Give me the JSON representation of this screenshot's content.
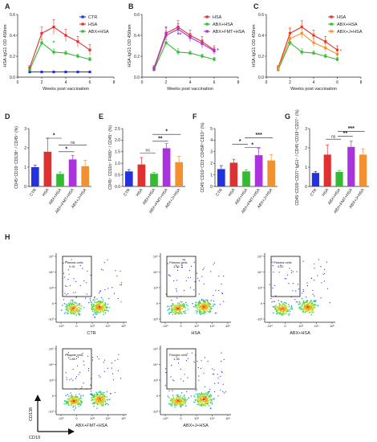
{
  "panels": {
    "A": "A",
    "B": "B",
    "C": "C",
    "D": "D",
    "E": "E",
    "F": "F",
    "G": "G",
    "H": "H"
  },
  "line_charts": [
    {
      "id": "A",
      "ylabel": "HSA-IgG1 OD 450nm",
      "xlabel": "Weeks post vaccination",
      "x": [
        1,
        2,
        3,
        4,
        5,
        6
      ],
      "xlim": [
        0,
        8
      ],
      "ylim": [
        0,
        0.6
      ],
      "xticks": [
        "0",
        "2",
        "4",
        "6",
        "8"
      ],
      "yticks": [
        "0.0",
        "0.2",
        "0.4",
        "0.6"
      ],
      "series": [
        {
          "name": "CTR",
          "color": "#2233dd",
          "values": [
            0.05,
            0.05,
            0.05,
            0.05,
            0.05,
            0.05
          ],
          "err": [
            0.005,
            0.005,
            0.005,
            0.005,
            0.005,
            0.005
          ]
        },
        {
          "name": "HSA",
          "color": "#e03030",
          "values": [
            0.09,
            0.42,
            0.48,
            0.4,
            0.34,
            0.26
          ],
          "err": [
            0.02,
            0.06,
            0.07,
            0.06,
            0.05,
            0.05
          ]
        },
        {
          "name": "ABX+HSA",
          "color": "#33bb33",
          "values": [
            0.07,
            0.33,
            0.24,
            0.23,
            0.2,
            0.17
          ],
          "err": [
            0.01,
            0.03,
            0.03,
            0.02,
            0.02,
            0.02
          ]
        }
      ],
      "stars": [
        {
          "x": 3,
          "y": 0.31,
          "text": "*",
          "color": "#33bb33"
        }
      ]
    },
    {
      "id": "B",
      "ylabel": "HSA-IgG1 OD 450nm",
      "xlabel": "Weeks post vaccination",
      "x": [
        1,
        2,
        3,
        4,
        5,
        6
      ],
      "xlim": [
        0,
        8
      ],
      "ylim": [
        0,
        0.6
      ],
      "xticks": [
        "0",
        "2",
        "4",
        "6",
        "8"
      ],
      "yticks": [
        "0.0",
        "0.2",
        "0.4",
        "0.6"
      ],
      "series": [
        {
          "name": "HSA",
          "color": "#e03030",
          "values": [
            0.09,
            0.42,
            0.48,
            0.4,
            0.34,
            0.26
          ],
          "err": [
            0.02,
            0.05,
            0.06,
            0.05,
            0.05,
            0.04
          ]
        },
        {
          "name": "ABX+HSA",
          "color": "#33bb33",
          "values": [
            0.07,
            0.33,
            0.24,
            0.23,
            0.2,
            0.17
          ],
          "err": [
            0.01,
            0.03,
            0.03,
            0.02,
            0.02,
            0.02
          ]
        },
        {
          "name": "ABX+FMT+HSA",
          "color": "#aa33dd",
          "values": [
            0.08,
            0.4,
            0.46,
            0.38,
            0.32,
            0.25
          ],
          "err": [
            0.02,
            0.04,
            0.05,
            0.04,
            0.04,
            0.03
          ]
        }
      ],
      "stars": [
        {
          "x": 2,
          "y": 0.45,
          "text": "*",
          "color": "#aa33dd"
        },
        {
          "x": 3.1,
          "y": 0.39,
          "text": "**",
          "color": "#aa33dd"
        },
        {
          "x": 6.3,
          "y": 0.24,
          "text": "*",
          "color": "#aa33dd"
        }
      ]
    },
    {
      "id": "C",
      "ylabel": "HSA-IgG1 OD 450nm",
      "xlabel": "Weeks post vaccination",
      "x": [
        1,
        2,
        3,
        4,
        5,
        6
      ],
      "xlim": [
        0,
        8
      ],
      "ylim": [
        0,
        0.6
      ],
      "xticks": [
        "0",
        "2",
        "4",
        "6",
        "8"
      ],
      "yticks": [
        "0.0",
        "0.2",
        "0.4",
        "0.6"
      ],
      "series": [
        {
          "name": "HSA",
          "color": "#e03030",
          "values": [
            0.09,
            0.42,
            0.48,
            0.4,
            0.34,
            0.26
          ],
          "err": [
            0.02,
            0.05,
            0.06,
            0.05,
            0.05,
            0.04
          ]
        },
        {
          "name": "ABX+HSA",
          "color": "#33bb33",
          "values": [
            0.07,
            0.33,
            0.24,
            0.23,
            0.2,
            0.17
          ],
          "err": [
            0.01,
            0.03,
            0.03,
            0.02,
            0.02,
            0.02
          ]
        },
        {
          "name": "ABX+J+HSA",
          "color": "#f39030",
          "values": [
            0.08,
            0.37,
            0.42,
            0.33,
            0.28,
            0.22
          ],
          "err": [
            0.02,
            0.04,
            0.05,
            0.04,
            0.04,
            0.03
          ]
        }
      ],
      "stars": [
        {
          "x": 2,
          "y": 0.44,
          "text": "*",
          "color": "#f39030"
        },
        {
          "x": 3,
          "y": 0.47,
          "text": "*",
          "color": "#f39030"
        },
        {
          "x": 4,
          "y": 0.39,
          "text": "*",
          "color": "#f39030"
        },
        {
          "x": 5,
          "y": 0.33,
          "text": "*",
          "color": "#f39030"
        },
        {
          "x": 6.3,
          "y": 0.23,
          "text": "*",
          "color": "#f39030"
        }
      ]
    }
  ],
  "bar_charts": [
    {
      "id": "D",
      "ylabel": "CD45⁺CD19⁻CD138⁺ / CD45⁺ (%)",
      "categories": [
        "CTR",
        "HSA",
        "ABX+HSA",
        "ABX+FMT+HSA",
        "ABX+J+HSA"
      ],
      "colors": [
        "#2233dd",
        "#e03030",
        "#33bb33",
        "#aa33dd",
        "#f39030"
      ],
      "values": [
        1.0,
        1.8,
        0.65,
        1.4,
        1.05
      ],
      "err": [
        0.1,
        0.7,
        0.1,
        0.2,
        0.3
      ],
      "ylim": [
        0,
        3
      ],
      "yticks": [
        "0",
        "1",
        "2",
        "3"
      ],
      "sig": [
        {
          "from": 1,
          "to": 2,
          "y": 2.5,
          "text": "*"
        },
        {
          "from": 2,
          "to": 3,
          "y": 1.8,
          "text": "*"
        },
        {
          "from": 2,
          "to": 4,
          "y": 2.15,
          "text": "ns"
        }
      ]
    },
    {
      "id": "E",
      "ylabel": "CD45⁺ CD11b⁺ F4/80⁺ / CD45⁺ (%)",
      "categories": [
        "CTR",
        "HSA",
        "ABX+HSA",
        "ABX+FMT+HSA",
        "ABX+J+HSA"
      ],
      "colors": [
        "#2233dd",
        "#e03030",
        "#33bb33",
        "#aa33dd",
        "#f39030"
      ],
      "values": [
        0.65,
        0.95,
        0.55,
        1.65,
        1.05
      ],
      "err": [
        0.08,
        0.3,
        0.05,
        0.2,
        0.25
      ],
      "ylim": [
        0,
        2.5
      ],
      "yticks": [
        "0.0",
        "0.5",
        "1.0",
        "1.5",
        "2.0",
        "2.5"
      ],
      "sig": [
        {
          "from": 1,
          "to": 2,
          "y": 1.45,
          "text": "ns"
        },
        {
          "from": 2,
          "to": 3,
          "y": 1.95,
          "text": "**"
        },
        {
          "from": 2,
          "to": 4,
          "y": 2.25,
          "text": "*"
        }
      ]
    },
    {
      "id": "F",
      "ylabel": "CD45⁺CD19⁺CD3⁻CD45R⁺CD19⁺ (%)",
      "categories": [
        "CTR",
        "HSA",
        "ABX+HSA",
        "ABX+FMT+HSA",
        "ABX+J+HSA"
      ],
      "colors": [
        "#2233dd",
        "#e03030",
        "#33bb33",
        "#aa33dd",
        "#f39030"
      ],
      "values": [
        1.5,
        2.05,
        1.3,
        2.7,
        2.25
      ],
      "err": [
        0.3,
        0.3,
        0.15,
        0.6,
        0.5
      ],
      "ylim": [
        0,
        5
      ],
      "yticks": [
        "0",
        "1",
        "2",
        "3",
        "4",
        "5"
      ],
      "sig": [
        {
          "from": 1,
          "to": 2,
          "y": 3.65,
          "text": "*"
        },
        {
          "from": 2,
          "to": 3,
          "y": 3.35,
          "text": "*"
        },
        {
          "from": 2,
          "to": 4,
          "y": 4.2,
          "text": "***"
        }
      ]
    },
    {
      "id": "G",
      "ylabel": "CD45⁺CD19⁺CD27⁺IgG1⁺ / CD45⁺CD19⁺CD27⁺ (%)",
      "categories": [
        "CTR",
        "HSA",
        "ABX+HSA",
        "ABX+FMT+HSA",
        "ABX+J+HSA"
      ],
      "colors": [
        "#2233dd",
        "#e03030",
        "#33bb33",
        "#aa33dd",
        "#f39030"
      ],
      "values": [
        0.7,
        1.65,
        0.75,
        2.05,
        1.65
      ],
      "err": [
        0.08,
        0.5,
        0.08,
        0.3,
        0.3
      ],
      "ylim": [
        0,
        3
      ],
      "yticks": [
        "0",
        "1",
        "2",
        "3"
      ],
      "sig": [
        {
          "from": 1,
          "to": 2,
          "y": 2.45,
          "text": "ns"
        },
        {
          "from": 2,
          "to": 3,
          "y": 2.6,
          "text": "**"
        },
        {
          "from": 2,
          "to": 4,
          "y": 2.85,
          "text": "***"
        }
      ]
    }
  ],
  "flow_plots": [
    {
      "id": "ctr",
      "caption": "CTR",
      "gate_label": "Plasma cells",
      "gate_value": "0.91"
    },
    {
      "id": "hsa",
      "caption": "HSA",
      "gate_label": "Plasma cells",
      "gate_value": "1.52"
    },
    {
      "id": "abx",
      "caption": "ABX+HSA",
      "gate_label": "Plasma cells",
      "gate_value": "0.87"
    },
    {
      "id": "fmt",
      "caption": "ABX+FMT+HSA",
      "gate_label": "Plasma cells",
      "gate_value": "1.88"
    },
    {
      "id": "j",
      "caption": "ABX+J+HSA",
      "gate_label": "Plasma cells",
      "gate_value": "1.35"
    }
  ],
  "flow_axes": {
    "y": "CD138",
    "x": "CD19"
  },
  "flow_ticks": {
    "y": [
      "10⁵",
      "10⁴",
      "10³",
      "0",
      "-10³"
    ],
    "x": [
      "-10³",
      "0",
      "10³",
      "10⁴",
      "10⁵"
    ]
  }
}
